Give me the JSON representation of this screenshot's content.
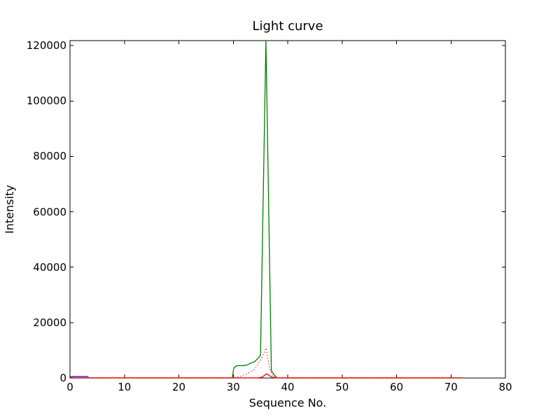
{
  "chart_data": {
    "type": "line",
    "title": "Light curve",
    "xlabel": "Sequence No.",
    "ylabel": "Intensity",
    "xlim": [
      0,
      80
    ],
    "ylim": [
      0,
      121800
    ],
    "x_ticks": [
      0,
      10,
      20,
      30,
      40,
      50,
      60,
      70,
      80
    ],
    "y_ticks": [
      0,
      20000,
      40000,
      60000,
      80000,
      100000,
      120000
    ],
    "grid": false,
    "legend": null,
    "background_color": "#ffffff",
    "axes_color": "#000000",
    "series": [
      {
        "name": "green-solid-curve",
        "color": "#008000",
        "linestyle": "solid",
        "x": [
          0,
          29.8,
          30.1,
          30.6,
          32,
          32.6,
          33,
          33.9,
          34.4,
          35,
          36,
          37,
          37.8,
          38.3,
          72
        ],
        "y": [
          0,
          0,
          3600,
          4400,
          4500,
          4700,
          5200,
          5900,
          6800,
          8200,
          121800,
          2600,
          400,
          0,
          0
        ]
      },
      {
        "name": "red-dotted-curve",
        "color": "#ff0000",
        "linestyle": "dotted",
        "x": [
          0,
          30,
          31,
          32,
          33,
          34,
          35,
          35.5,
          36,
          36.7,
          37.3,
          38,
          39,
          72
        ],
        "y": [
          0,
          100,
          400,
          1100,
          2000,
          3300,
          6600,
          8400,
          10800,
          3300,
          600,
          100,
          0,
          0
        ]
      },
      {
        "name": "red-solid-curve",
        "color": "#ff0000",
        "linestyle": "solid",
        "x": [
          0,
          34.5,
          35.3,
          36.1,
          37,
          37.6,
          72
        ],
        "y": [
          60,
          60,
          300,
          1500,
          400,
          60,
          60
        ]
      },
      {
        "name": "blue-solid-curve",
        "color": "#0000ff",
        "linestyle": "solid",
        "x": [
          0,
          0.8,
          2,
          3,
          3.4
        ],
        "y": [
          420,
          560,
          570,
          540,
          470
        ]
      }
    ]
  }
}
